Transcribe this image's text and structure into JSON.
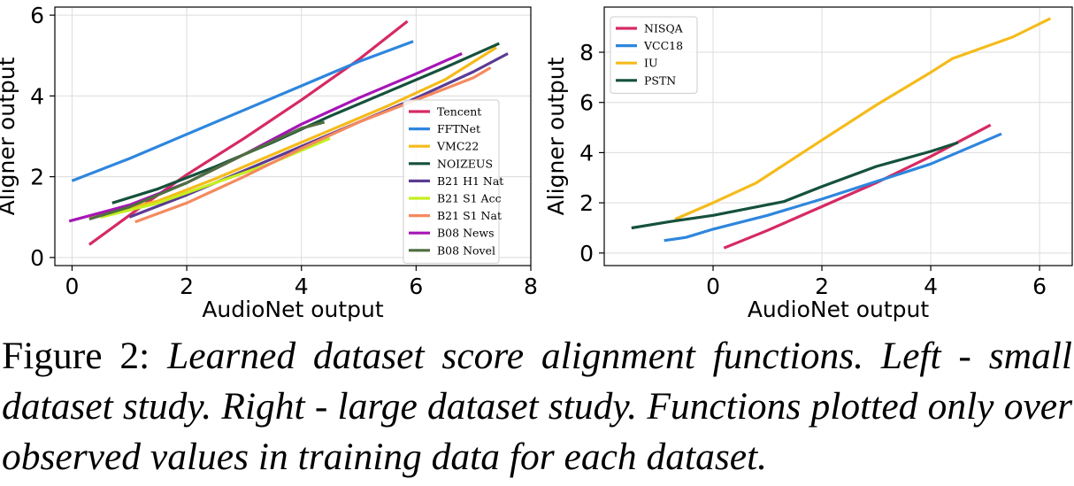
{
  "chart_data": [
    {
      "type": "line",
      "panel": "left",
      "xlabel": "AudioNet output",
      "ylabel": "Aligner output",
      "xlim": [
        -0.3,
        8.0
      ],
      "ylim": [
        -0.2,
        6.2
      ],
      "xticks": [
        0,
        2,
        4,
        6,
        8
      ],
      "yticks": [
        0,
        2,
        4,
        6
      ],
      "grid": true,
      "legend_position": "lower-right",
      "series": [
        {
          "name": "Tencent",
          "color": "#d62a63",
          "x": [
            0.3,
            1.2,
            2.0,
            3.0,
            4.0,
            5.0,
            5.85
          ],
          "y": [
            0.32,
            1.25,
            2.05,
            2.95,
            3.9,
            4.9,
            5.85
          ]
        },
        {
          "name": "FFTNet",
          "color": "#2e86de",
          "x": [
            0.0,
            1.0,
            2.0,
            3.0,
            4.0,
            5.0,
            5.95
          ],
          "y": [
            1.9,
            2.45,
            3.05,
            3.65,
            4.25,
            4.85,
            5.35
          ]
        },
        {
          "name": "VMC22",
          "color": "#f5bb1b",
          "x": [
            0.3,
            1.5,
            2.5,
            3.5,
            4.5,
            5.5,
            6.5,
            7.4
          ],
          "y": [
            1.0,
            1.4,
            1.95,
            2.55,
            3.15,
            3.75,
            4.4,
            5.2
          ]
        },
        {
          "name": "NOIZEUS",
          "color": "#15513b",
          "x": [
            0.7,
            1.5,
            2.5,
            3.5,
            4.5,
            5.5,
            6.5,
            7.45
          ],
          "y": [
            1.35,
            1.7,
            2.25,
            2.85,
            3.5,
            4.1,
            4.7,
            5.3
          ]
        },
        {
          "name": "B21 H1 Nat",
          "color": "#5b3b93",
          "x": [
            1.0,
            2.0,
            3.0,
            4.0,
            5.0,
            6.0,
            7.0,
            7.6
          ],
          "y": [
            1.0,
            1.55,
            2.15,
            2.75,
            3.35,
            3.95,
            4.6,
            5.05
          ]
        },
        {
          "name": "B21 S1 Acc",
          "color": "#c6ef1f",
          "x": [
            0.5,
            1.5,
            2.5,
            3.5,
            4.5
          ],
          "y": [
            1.0,
            1.35,
            1.85,
            2.35,
            2.95
          ]
        },
        {
          "name": "B21 S1 Nat",
          "color": "#f48a5f",
          "x": [
            1.1,
            2.0,
            3.0,
            4.0,
            5.0,
            6.0,
            7.0,
            7.3
          ],
          "y": [
            0.88,
            1.35,
            2.0,
            2.7,
            3.35,
            3.9,
            4.45,
            4.7
          ]
        },
        {
          "name": "B08 News",
          "color": "#a615b5",
          "x": [
            -0.05,
            1.0,
            2.0,
            3.0,
            4.0,
            5.0,
            6.0,
            6.8
          ],
          "y": [
            0.9,
            1.3,
            1.85,
            2.55,
            3.3,
            3.95,
            4.55,
            5.05
          ]
        },
        {
          "name": "B08 Novel",
          "color": "#4f6e3f",
          "x": [
            0.3,
            1.0,
            2.0,
            3.0,
            4.0,
            4.4
          ],
          "y": [
            0.95,
            1.25,
            1.85,
            2.55,
            3.2,
            3.35
          ]
        }
      ]
    },
    {
      "type": "line",
      "panel": "right",
      "xlabel": "AudioNet output",
      "ylabel": "Aligner output",
      "xlim": [
        -2.0,
        6.6
      ],
      "ylim": [
        -0.5,
        9.8
      ],
      "xticks": [
        0,
        2,
        4,
        6
      ],
      "yticks": [
        0,
        2,
        4,
        6,
        8
      ],
      "grid": true,
      "legend_position": "upper-left",
      "series": [
        {
          "name": "NISQA",
          "color": "#d62a63",
          "x": [
            0.2,
            1.0,
            2.0,
            3.0,
            4.0,
            5.1
          ],
          "y": [
            0.2,
            0.9,
            1.85,
            2.8,
            3.85,
            5.1
          ]
        },
        {
          "name": "VCC18",
          "color": "#2e86de",
          "x": [
            -0.9,
            -0.5,
            0.0,
            1.0,
            2.0,
            3.0,
            4.0,
            5.3
          ],
          "y": [
            0.5,
            0.62,
            0.95,
            1.5,
            2.15,
            2.85,
            3.55,
            4.75
          ]
        },
        {
          "name": "IU",
          "color": "#f5bb1b",
          "x": [
            -0.7,
            0.0,
            0.8,
            2.0,
            3.0,
            4.0,
            4.4,
            5.5,
            6.2
          ],
          "y": [
            1.35,
            2.0,
            2.8,
            4.5,
            5.9,
            7.2,
            7.75,
            8.6,
            9.35
          ]
        },
        {
          "name": "PSTN",
          "color": "#15513b",
          "x": [
            -1.5,
            -0.8,
            0.0,
            1.3,
            2.0,
            3.0,
            4.0,
            4.5
          ],
          "y": [
            1.0,
            1.25,
            1.5,
            2.05,
            2.65,
            3.45,
            4.05,
            4.4
          ]
        }
      ]
    }
  ],
  "caption": {
    "label": "Figure 2:",
    "text": "Learned dataset score alignment functions. Left - small dataset study. Right - large dataset study. Functions plotted only over observed values in training data for each dataset."
  }
}
